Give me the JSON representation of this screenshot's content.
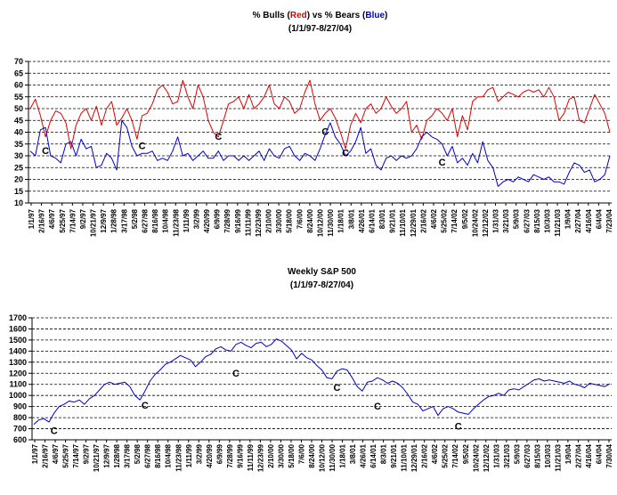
{
  "chart_data": [
    {
      "type": "line",
      "title_parts": [
        {
          "text": "% Bulls (",
          "color": "#000000"
        },
        {
          "text": "Red",
          "color": "#e00000"
        },
        {
          "text": ") vs % Bears (",
          "color": "#000000"
        },
        {
          "text": "Blue",
          "color": "#0000cc"
        },
        {
          "text": ")",
          "color": "#000000"
        }
      ],
      "subtitle": "(1/1/97-8/27/04)",
      "xlabel": "",
      "ylabel": "",
      "ylim": [
        10,
        70
      ],
      "yticks": [
        10,
        15,
        20,
        25,
        30,
        35,
        40,
        45,
        50,
        55,
        60,
        65,
        70
      ],
      "grid": "horizontal dashed",
      "x_tick_labels": [
        "1/1/97",
        "2/16/97",
        "4/6/97",
        "5/25/97",
        "7/14/97",
        "9/2/97",
        "10/21/97",
        "12/9/97",
        "1/28/98",
        "3/17/98",
        "5/2/98",
        "6/27/98",
        "8/16/98",
        "10/4/98",
        "11/23/98",
        "1/11/99",
        "3/2/99",
        "4/20/99",
        "6/9/99",
        "7/28/99",
        "9/16/99",
        "11/11/99",
        "12/23/99",
        "2/10/00",
        "3/30/00",
        "5/18/00",
        "7/6/00",
        "8/24/00",
        "10/12/00",
        "11/30/00",
        "1/18/01",
        "3/8/01",
        "4/26/01",
        "6/14/01",
        "8/3/01",
        "9/21/01",
        "11/10/01",
        "12/29/01",
        "2/16/02",
        "4/6/02",
        "5/25/02",
        "7/14/02",
        "9/5/02",
        "10/24/02",
        "12/12/02",
        "1/31/03",
        "3/21/03",
        "5/9/03",
        "6/27/03",
        "8/15/03",
        "10/3/03",
        "11/21/03",
        "1/9/04",
        "2/27/04",
        "4/16/04",
        "6/4/04",
        "7/23/04"
      ],
      "series": [
        {
          "color": "#e00000",
          "values": [
            50,
            54,
            47,
            38,
            45,
            49,
            48,
            44,
            33,
            43,
            48,
            50,
            45,
            51,
            43,
            50,
            53,
            43,
            46,
            50,
            45,
            37,
            47,
            48,
            52,
            58,
            60,
            57,
            52,
            53,
            62,
            55,
            50,
            60,
            55,
            45,
            40,
            38,
            45,
            52,
            53,
            55,
            50,
            56,
            50,
            52,
            55,
            60,
            52,
            50,
            55,
            53,
            48,
            50,
            57,
            62,
            52,
            45,
            48,
            50,
            46,
            40,
            33,
            43,
            48,
            44,
            50,
            52,
            48,
            50,
            55,
            51,
            48,
            50,
            53,
            40,
            43,
            37,
            45,
            47,
            50,
            48,
            45,
            50,
            38,
            47,
            41,
            53,
            55,
            55,
            58,
            59,
            53,
            55,
            57,
            56,
            55,
            57,
            58,
            57,
            58,
            55,
            59,
            55,
            45,
            48,
            54,
            55,
            45,
            44,
            50,
            56,
            52,
            48,
            40
          ]
        },
        {
          "color": "#0000cc",
          "values": [
            32,
            30,
            41,
            42,
            30,
            29,
            27,
            35,
            36,
            30,
            37,
            33,
            34,
            25,
            26,
            31,
            29,
            24,
            45,
            42,
            34,
            30,
            31,
            31,
            32,
            28,
            29,
            28,
            32,
            38,
            30,
            31,
            28,
            30,
            32,
            29,
            29,
            32,
            28,
            30,
            30,
            28,
            30,
            28,
            30,
            32,
            28,
            33,
            30,
            29,
            33,
            34,
            30,
            28,
            31,
            30,
            28,
            33,
            39,
            44,
            38,
            35,
            30,
            32,
            36,
            42,
            31,
            33,
            26,
            24,
            29,
            30,
            28,
            30,
            29,
            30,
            33,
            38,
            40,
            38,
            37,
            35,
            30,
            34,
            27,
            29,
            26,
            31,
            27,
            36,
            28,
            25,
            17,
            19,
            20,
            19,
            21,
            20,
            19,
            22,
            21,
            20,
            21,
            19,
            19,
            18,
            23,
            27,
            26,
            23,
            24,
            19,
            20,
            22,
            30
          ]
        }
      ],
      "annotations": [
        {
          "text": "C",
          "x_index": 3,
          "value": 35
        },
        {
          "text": "C",
          "x_index": 22,
          "value": 37
        },
        {
          "text": "C",
          "x_index": 37,
          "value": 41
        },
        {
          "text": "C",
          "x_index": 58,
          "value": 43
        },
        {
          "text": "C",
          "x_index": 62,
          "value": 34
        },
        {
          "text": "C",
          "x_index": 81,
          "value": 30
        }
      ]
    },
    {
      "type": "line",
      "title": "Weekly S&P 500",
      "subtitle": "(1/1/97-8/27/04)",
      "xlabel": "",
      "ylabel": "",
      "ylim": [
        600,
        1700
      ],
      "yticks": [
        600,
        700,
        800,
        900,
        1000,
        1100,
        1200,
        1300,
        1400,
        1500,
        1600,
        1700
      ],
      "grid": "horizontal dashed",
      "x_tick_labels": [
        "1/1/97",
        "2/16/97",
        "4/6/97",
        "5/25/97",
        "7/14/97",
        "9/2/97",
        "10/21/97",
        "12/9/97",
        "1/28/98",
        "3/17/98",
        "5/2/98",
        "6/27/98",
        "8/16/98",
        "10/4/98",
        "11/23/98",
        "1/11/99",
        "3/2/99",
        "4/20/99",
        "6/9/99",
        "7/28/99",
        "9/16/99",
        "11/11/99",
        "12/23/99",
        "2/10/00",
        "3/30/00",
        "5/18/00",
        "7/6/00",
        "8/24/00",
        "10/12/00",
        "11/30/00",
        "1/18/01",
        "3/8/01",
        "4/26/01",
        "6/14/01",
        "8/3/01",
        "9/21/01",
        "11/10/01",
        "12/29/01",
        "2/16/02",
        "4/6/02",
        "5/25/02",
        "7/14/02",
        "9/5/02",
        "10/24/02",
        "12/12/02",
        "1/31/03",
        "3/21/03",
        "5/9/03",
        "6/27/03",
        "8/15/03",
        "10/3/03",
        "11/21/03",
        "1/9/04",
        "2/27/04",
        "4/16/04",
        "6/4/04",
        "7/30/04"
      ],
      "series": [
        {
          "color": "#0000cc",
          "values": [
            740,
            780,
            790,
            760,
            840,
            900,
            920,
            950,
            940,
            960,
            920,
            970,
            1000,
            1050,
            1100,
            1120,
            1100,
            1110,
            1120,
            1080,
            1000,
            960,
            1040,
            1130,
            1190,
            1230,
            1280,
            1300,
            1330,
            1360,
            1340,
            1320,
            1260,
            1300,
            1350,
            1370,
            1420,
            1440,
            1410,
            1400,
            1460,
            1480,
            1450,
            1430,
            1470,
            1480,
            1440,
            1460,
            1510,
            1490,
            1450,
            1410,
            1330,
            1380,
            1340,
            1320,
            1270,
            1230,
            1160,
            1150,
            1220,
            1240,
            1230,
            1160,
            1080,
            1040,
            1120,
            1130,
            1160,
            1140,
            1110,
            1130,
            1110,
            1070,
            1010,
            940,
            920,
            860,
            880,
            900,
            820,
            880,
            900,
            880,
            850,
            840,
            830,
            880,
            920,
            960,
            990,
            1000,
            1020,
            1000,
            1050,
            1060,
            1050,
            1080,
            1110,
            1140,
            1150,
            1130,
            1140,
            1130,
            1120,
            1110,
            1130,
            1100,
            1090,
            1070,
            1110,
            1100,
            1090,
            1080,
            1105
          ]
        }
      ],
      "annotations": [
        {
          "text": "C",
          "x_index": 4,
          "value": 740
        },
        {
          "text": "C",
          "x_index": 22,
          "value": 970
        },
        {
          "text": "C",
          "x_index": 40,
          "value": 1260
        },
        {
          "text": "C",
          "x_index": 60,
          "value": 1130
        },
        {
          "text": "C",
          "x_index": 68,
          "value": 960
        },
        {
          "text": "C",
          "x_index": 84,
          "value": 780
        }
      ]
    }
  ]
}
